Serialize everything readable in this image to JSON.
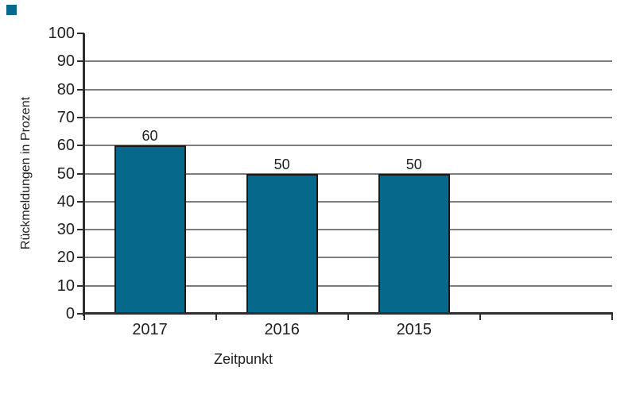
{
  "chart_data": {
    "type": "bar",
    "title": "",
    "categories": [
      "2017",
      "2016",
      "2015"
    ],
    "values": [
      60,
      50,
      50
    ],
    "data_labels": [
      "60",
      "50",
      "50"
    ],
    "xlabel": "Zeitpunkt",
    "ylabel": "Rückmeldungen in Prozent",
    "ylim": [
      0,
      100
    ],
    "ytick_step": 10,
    "ytick_labels": [
      "0",
      "10",
      "20",
      "30",
      "40",
      "50",
      "60",
      "70",
      "80",
      "90",
      "100"
    ],
    "grid": "horizontal-major-only-no-top",
    "legend": "none",
    "bar_color": "#06688a",
    "bar_border_color": "#1a1a1a",
    "gridline_color": "#7d7d7d",
    "axis_color": "#2e2e2e",
    "text_color": "#1f1f1f"
  },
  "decor": {
    "corner_square_color": "#06688a"
  }
}
